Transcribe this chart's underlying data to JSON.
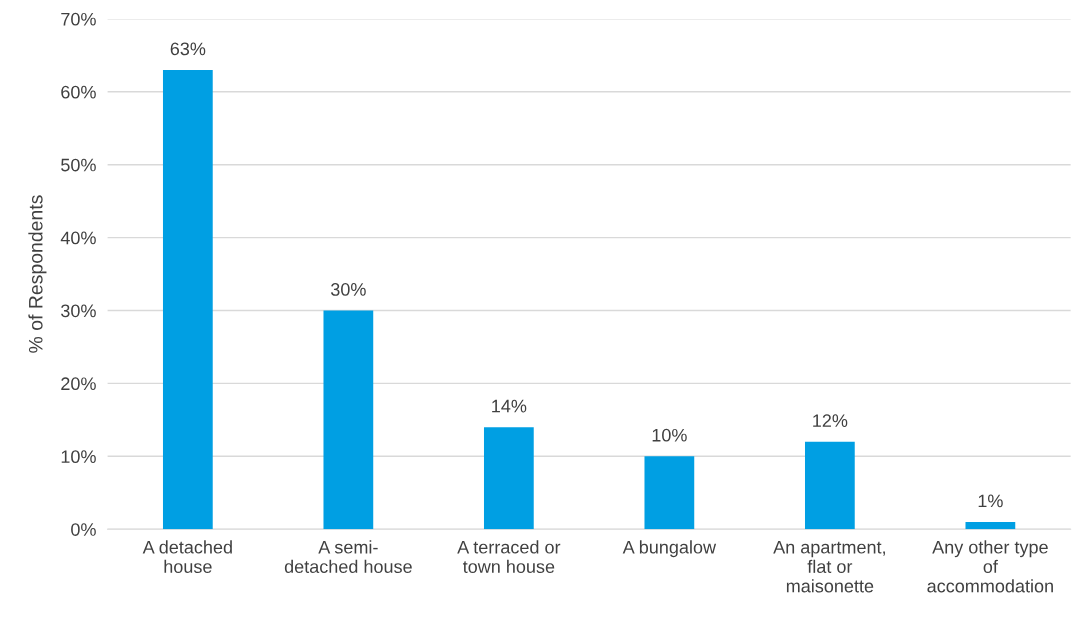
{
  "chart_data": {
    "type": "bar",
    "ylabel": "% of Respondents",
    "categories": [
      "A detached\nhouse",
      "A semi-\ndetached house",
      "A terraced or\ntown house",
      "A bungalow",
      "An apartment,\nflat or\nmaisonette",
      "Any other type\nof\naccommodation"
    ],
    "values": [
      63,
      30,
      14,
      10,
      12,
      1
    ],
    "value_labels": [
      "63%",
      "30%",
      "14%",
      "10%",
      "12%",
      "1%"
    ],
    "color": "#009fe3",
    "ylim": [
      0,
      70
    ],
    "yticks": [
      {
        "value": 0,
        "label": "0%"
      },
      {
        "value": 10,
        "label": "10%"
      },
      {
        "value": 20,
        "label": "20%"
      },
      {
        "value": 30,
        "label": "30%"
      },
      {
        "value": 40,
        "label": "40%"
      },
      {
        "value": 50,
        "label": "50%"
      },
      {
        "value": 60,
        "label": "60%"
      },
      {
        "value": 70,
        "label": "70%"
      }
    ],
    "grid": "y",
    "legend": false
  }
}
